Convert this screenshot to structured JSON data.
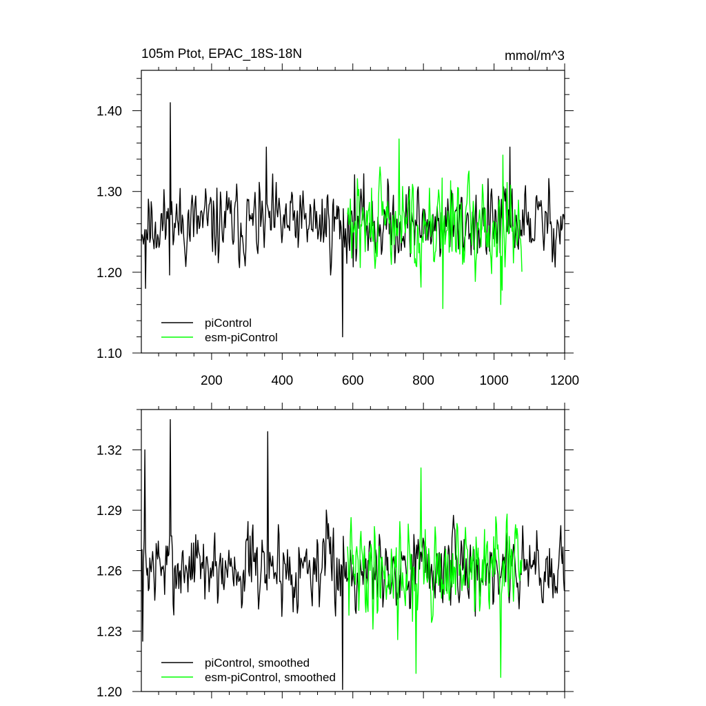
{
  "chart_data": [
    {
      "type": "line",
      "title": "105m Ptot, EPAC_18S-18N",
      "units": "mmol/m^3",
      "xlim": [
        1,
        1200
      ],
      "ylim": [
        1.1,
        1.45
      ],
      "x_ticks": [
        200,
        400,
        600,
        800,
        1000,
        1200
      ],
      "x_tick_labels": [
        "200",
        "400",
        "600",
        "800",
        "1000",
        "1200"
      ],
      "y_ticks": [
        1.1,
        1.2,
        1.3,
        1.4
      ],
      "y_tick_labels": [
        "1.10",
        "1.20",
        "1.30",
        "1.40"
      ],
      "legend_placement": "bottom-left",
      "series": [
        {
          "name": "piControl",
          "color": "#000000",
          "x_range": [
            1,
            1200
          ],
          "mean": 1.26,
          "noise": 0.032,
          "seed": 11,
          "spikes": [
            [
              83,
              1.41
            ],
            [
              572,
              1.12
            ],
            [
              13,
              1.18
            ],
            [
              355,
              1.355
            ],
            [
              1045,
              1.355
            ]
          ]
        },
        {
          "name": "esm-piControl",
          "color": "#00ff00",
          "x_range": [
            585,
            1080
          ],
          "mean": 1.258,
          "noise": 0.037,
          "seed": 29,
          "spikes": [
            [
              732,
              1.365
            ],
            [
              855,
              1.155
            ],
            [
              1020,
              1.16
            ],
            [
              1025,
              1.345
            ]
          ]
        }
      ]
    },
    {
      "type": "line",
      "xlim": [
        1,
        1200
      ],
      "ylim": [
        1.2,
        1.34
      ],
      "x_ticks": [
        200,
        400,
        600,
        800,
        1000,
        1200
      ],
      "y_ticks": [
        1.2,
        1.23,
        1.26,
        1.29,
        1.32
      ],
      "y_tick_labels": [
        "1.20",
        "1.23",
        "1.26",
        "1.29",
        "1.32"
      ],
      "legend_placement": "bottom-left",
      "series": [
        {
          "name": "piControl, smoothed",
          "color": "#000000",
          "x_range": [
            1,
            1200
          ],
          "mean": 1.262,
          "noise": 0.014,
          "seed": 7,
          "spikes": [
            [
              83,
              1.335
            ],
            [
              360,
              1.329
            ],
            [
              572,
              1.201
            ],
            [
              5,
              1.225
            ],
            [
              12,
              1.32
            ]
          ]
        },
        {
          "name": "esm-piControl, smoothed",
          "color": "#00ff00",
          "x_range": [
            585,
            1080
          ],
          "mean": 1.26,
          "noise": 0.017,
          "seed": 41,
          "spikes": [
            [
              793,
              1.311
            ],
            [
              1020,
              1.207
            ],
            [
              780,
              1.209
            ]
          ]
        }
      ]
    }
  ]
}
